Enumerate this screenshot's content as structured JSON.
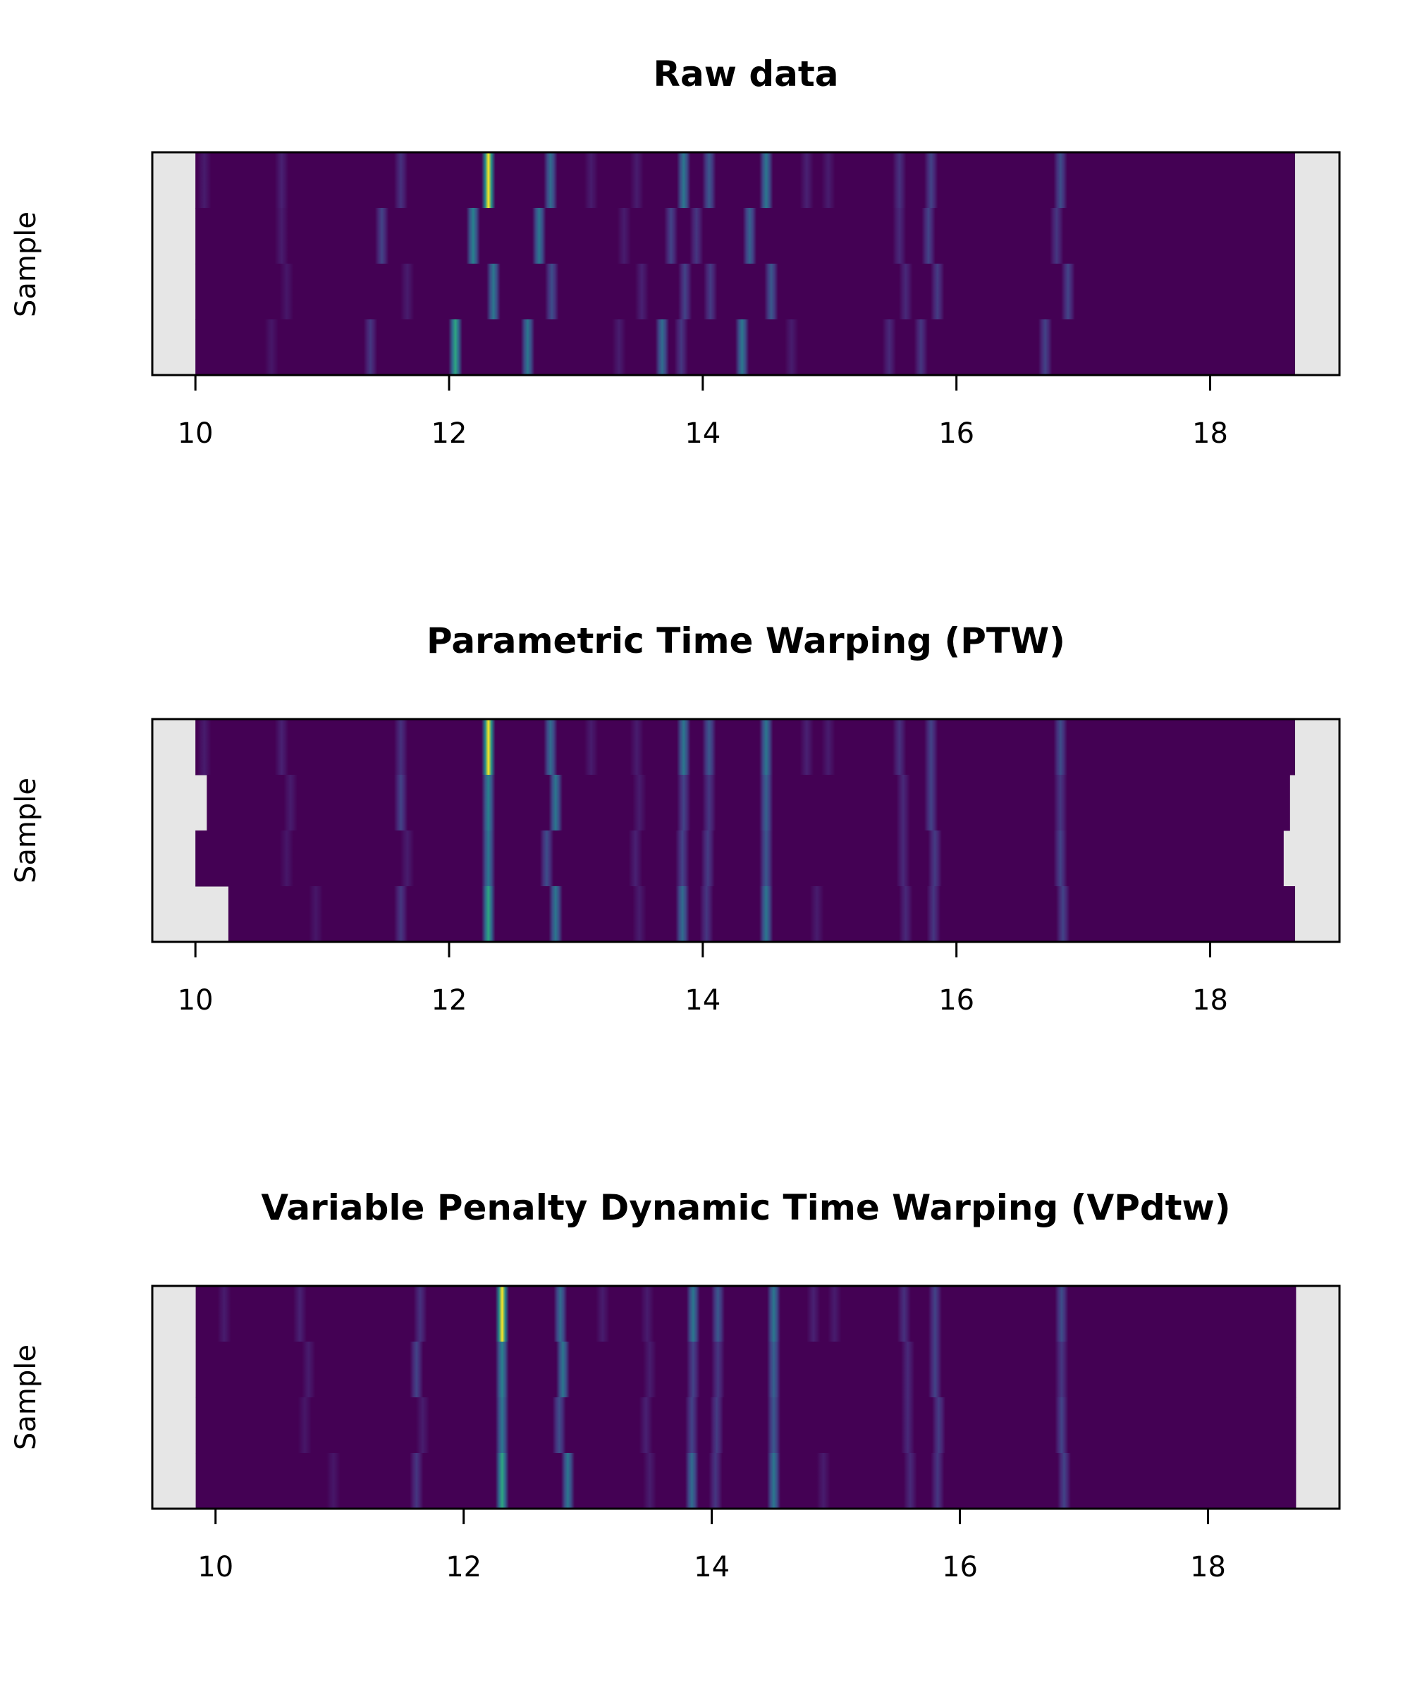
{
  "chart_data": [
    {
      "type": "heatmap",
      "title": "Raw data",
      "xlabel": "",
      "ylabel": "Sample",
      "xlim": [
        9.66,
        19.02
      ],
      "xticks": [
        10,
        12,
        14,
        16,
        18
      ],
      "n_samples": 4,
      "missing_color": "#e6e6e6",
      "rows": [
        {
          "start": 10.0,
          "end": 18.67,
          "peaks": [
            [
              10.07,
              0.1
            ],
            [
              10.68,
              0.12
            ],
            [
              11.62,
              0.18
            ],
            [
              12.31,
              1.0
            ],
            [
              12.8,
              0.45
            ],
            [
              13.12,
              0.1
            ],
            [
              13.48,
              0.1
            ],
            [
              13.85,
              0.5
            ],
            [
              14.05,
              0.35
            ],
            [
              14.5,
              0.5
            ],
            [
              14.82,
              0.12
            ],
            [
              14.99,
              0.1
            ],
            [
              15.55,
              0.18
            ],
            [
              15.8,
              0.25
            ],
            [
              16.82,
              0.3
            ]
          ]
        },
        {
          "start": 10.0,
          "end": 18.67,
          "peaks": [
            [
              10.68,
              0.1
            ],
            [
              11.47,
              0.25
            ],
            [
              12.19,
              0.55
            ],
            [
              12.71,
              0.5
            ],
            [
              13.38,
              0.1
            ],
            [
              13.75,
              0.25
            ],
            [
              13.95,
              0.2
            ],
            [
              14.37,
              0.4
            ],
            [
              15.55,
              0.15
            ],
            [
              15.78,
              0.25
            ],
            [
              16.79,
              0.2
            ]
          ]
        },
        {
          "start": 10.0,
          "end": 18.67,
          "peaks": [
            [
              10.72,
              0.08
            ],
            [
              11.67,
              0.1
            ],
            [
              12.35,
              0.5
            ],
            [
              12.81,
              0.3
            ],
            [
              13.52,
              0.12
            ],
            [
              13.86,
              0.25
            ],
            [
              14.06,
              0.22
            ],
            [
              14.54,
              0.35
            ],
            [
              15.6,
              0.15
            ],
            [
              15.85,
              0.22
            ],
            [
              16.88,
              0.25
            ]
          ]
        },
        {
          "start": 10.0,
          "end": 18.67,
          "peaks": [
            [
              10.6,
              0.08
            ],
            [
              11.38,
              0.2
            ],
            [
              12.05,
              0.7
            ],
            [
              12.62,
              0.5
            ],
            [
              13.34,
              0.1
            ],
            [
              13.68,
              0.45
            ],
            [
              13.83,
              0.2
            ],
            [
              14.31,
              0.5
            ],
            [
              14.7,
              0.1
            ],
            [
              15.47,
              0.15
            ],
            [
              15.72,
              0.2
            ],
            [
              16.7,
              0.25
            ]
          ]
        }
      ]
    },
    {
      "type": "heatmap",
      "title": "Parametric Time Warping (PTW)",
      "xlabel": "",
      "ylabel": "Sample",
      "xlim": [
        9.66,
        19.02
      ],
      "xticks": [
        10,
        12,
        14,
        16,
        18
      ],
      "n_samples": 4,
      "missing_color": "#e6e6e6",
      "rows": [
        {
          "start": 10.0,
          "end": 18.67,
          "peaks": [
            [
              10.07,
              0.1
            ],
            [
              10.68,
              0.12
            ],
            [
              11.62,
              0.18
            ],
            [
              12.31,
              1.0
            ],
            [
              12.8,
              0.45
            ],
            [
              13.12,
              0.1
            ],
            [
              13.48,
              0.1
            ],
            [
              13.85,
              0.5
            ],
            [
              14.05,
              0.35
            ],
            [
              14.5,
              0.5
            ],
            [
              14.82,
              0.12
            ],
            [
              14.99,
              0.1
            ],
            [
              15.55,
              0.18
            ],
            [
              15.8,
              0.25
            ],
            [
              16.82,
              0.3
            ]
          ]
        },
        {
          "start": 10.09,
          "end": 18.63,
          "peaks": [
            [
              10.75,
              0.1
            ],
            [
              11.62,
              0.25
            ],
            [
              12.31,
              0.55
            ],
            [
              12.84,
              0.5
            ],
            [
              13.5,
              0.1
            ],
            [
              13.85,
              0.25
            ],
            [
              14.05,
              0.2
            ],
            [
              14.5,
              0.4
            ],
            [
              15.58,
              0.15
            ],
            [
              15.8,
              0.25
            ],
            [
              16.82,
              0.2
            ]
          ]
        },
        {
          "start": 10.0,
          "end": 18.58,
          "peaks": [
            [
              10.72,
              0.08
            ],
            [
              11.67,
              0.1
            ],
            [
              12.31,
              0.5
            ],
            [
              12.77,
              0.3
            ],
            [
              13.47,
              0.12
            ],
            [
              13.84,
              0.25
            ],
            [
              14.04,
              0.22
            ],
            [
              14.5,
              0.35
            ],
            [
              15.58,
              0.15
            ],
            [
              15.83,
              0.22
            ],
            [
              16.82,
              0.25
            ]
          ]
        },
        {
          "start": 10.26,
          "end": 18.67,
          "peaks": [
            [
              10.95,
              0.08
            ],
            [
              11.62,
              0.2
            ],
            [
              12.31,
              0.7
            ],
            [
              12.84,
              0.5
            ],
            [
              13.5,
              0.1
            ],
            [
              13.84,
              0.45
            ],
            [
              14.03,
              0.2
            ],
            [
              14.5,
              0.5
            ],
            [
              14.9,
              0.1
            ],
            [
              15.6,
              0.15
            ],
            [
              15.82,
              0.2
            ],
            [
              16.84,
              0.25
            ]
          ]
        }
      ]
    },
    {
      "type": "heatmap",
      "title": "Variable Penalty Dynamic Time Warping (VPdtw)",
      "xlabel": "",
      "ylabel": "Sample",
      "xlim": [
        9.49,
        19.06
      ],
      "xticks": [
        10,
        12,
        14,
        16,
        18
      ],
      "n_samples": 4,
      "missing_color": "#e6e6e6",
      "rows": [
        {
          "start": 9.84,
          "end": 18.71,
          "peaks": [
            [
              10.07,
              0.1
            ],
            [
              10.68,
              0.12
            ],
            [
              11.65,
              0.18
            ],
            [
              12.31,
              1.0
            ],
            [
              12.78,
              0.45
            ],
            [
              13.12,
              0.1
            ],
            [
              13.48,
              0.1
            ],
            [
              13.85,
              0.5
            ],
            [
              14.05,
              0.35
            ],
            [
              14.5,
              0.5
            ],
            [
              14.82,
              0.12
            ],
            [
              14.99,
              0.1
            ],
            [
              15.55,
              0.18
            ],
            [
              15.8,
              0.25
            ],
            [
              16.82,
              0.3
            ]
          ]
        },
        {
          "start": 9.84,
          "end": 18.71,
          "peaks": [
            [
              10.75,
              0.1
            ],
            [
              11.62,
              0.25
            ],
            [
              12.31,
              0.55
            ],
            [
              12.8,
              0.5
            ],
            [
              13.5,
              0.1
            ],
            [
              13.85,
              0.25
            ],
            [
              14.05,
              0.2
            ],
            [
              14.5,
              0.4
            ],
            [
              15.58,
              0.15
            ],
            [
              15.8,
              0.25
            ],
            [
              16.82,
              0.2
            ]
          ]
        },
        {
          "start": 9.84,
          "end": 18.71,
          "peaks": [
            [
              10.72,
              0.08
            ],
            [
              11.67,
              0.1
            ],
            [
              12.31,
              0.5
            ],
            [
              12.77,
              0.3
            ],
            [
              13.47,
              0.12
            ],
            [
              13.84,
              0.25
            ],
            [
              14.04,
              0.22
            ],
            [
              14.5,
              0.35
            ],
            [
              15.58,
              0.15
            ],
            [
              15.83,
              0.22
            ],
            [
              16.82,
              0.25
            ]
          ]
        },
        {
          "start": 9.84,
          "end": 18.71,
          "peaks": [
            [
              10.95,
              0.08
            ],
            [
              11.62,
              0.2
            ],
            [
              12.31,
              0.7
            ],
            [
              12.84,
              0.5
            ],
            [
              13.5,
              0.1
            ],
            [
              13.84,
              0.45
            ],
            [
              14.03,
              0.2
            ],
            [
              14.5,
              0.5
            ],
            [
              14.9,
              0.1
            ],
            [
              15.6,
              0.15
            ],
            [
              15.82,
              0.2
            ],
            [
              16.84,
              0.25
            ]
          ]
        }
      ]
    }
  ]
}
